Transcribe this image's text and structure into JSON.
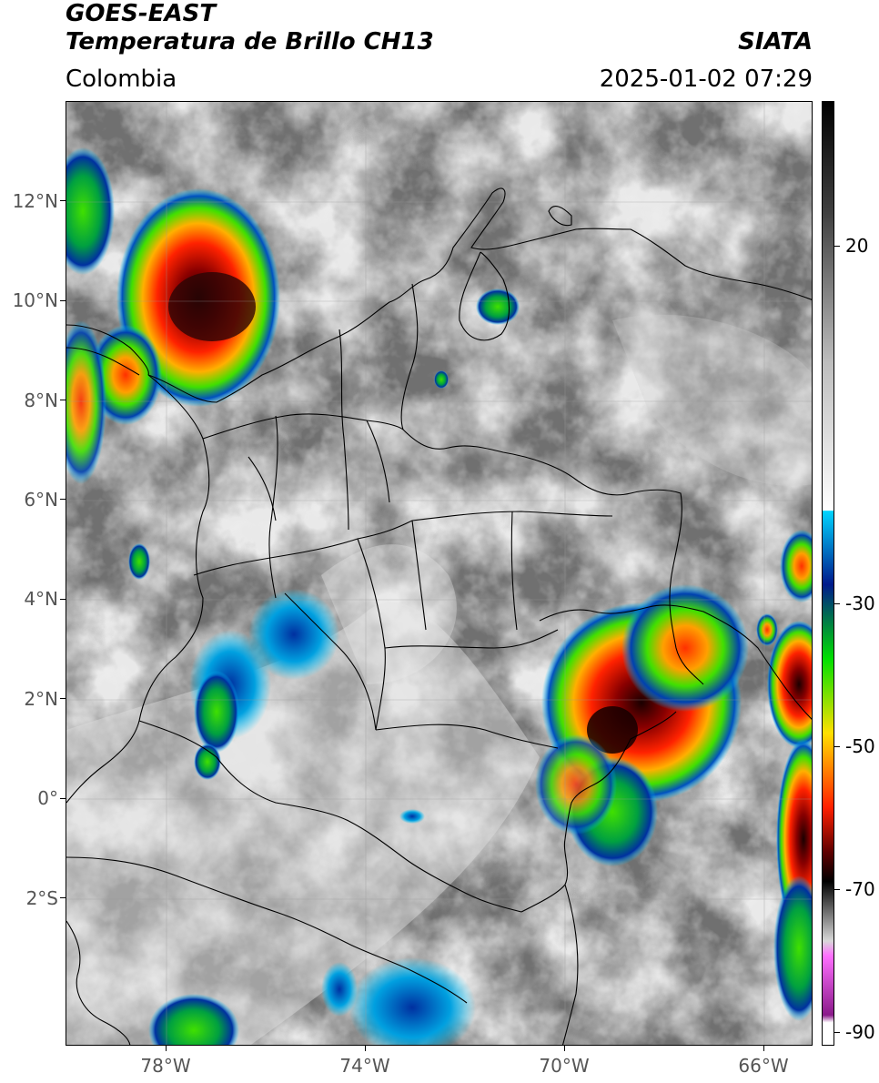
{
  "header": {
    "satellite": "GOES-EAST",
    "product": "Temperatura de Brillo CH13",
    "region": "Colombia",
    "agency": "SIATA",
    "datetime": "2025-01-02 07:29"
  },
  "map": {
    "lat_labels": [
      "12°N",
      "10°N",
      "8°N",
      "6°N",
      "4°N",
      "2°N",
      "0°",
      "2°S"
    ],
    "lon_labels": [
      "78°W",
      "74°W",
      "70°W",
      "66°W"
    ]
  },
  "colorbar": {
    "tick_labels": [
      "20",
      "-30",
      "-50",
      "-70",
      "-90"
    ],
    "stops": [
      {
        "v": 35,
        "c": "#000000"
      },
      {
        "v": 20,
        "c": "#404040"
      },
      {
        "v": 0,
        "c": "#bdbdbd"
      },
      {
        "v": -20,
        "c": "#ffffff"
      },
      {
        "v": -20.1,
        "c": "#00d4ff"
      },
      {
        "v": -30,
        "c": "#001a8c"
      },
      {
        "v": -40,
        "c": "#00e000"
      },
      {
        "v": -50,
        "c": "#ffe000"
      },
      {
        "v": -60,
        "c": "#ff2000"
      },
      {
        "v": -66,
        "c": "#600000"
      },
      {
        "v": -70,
        "c": "#000000"
      },
      {
        "v": -78,
        "c": "#d8d8d8"
      },
      {
        "v": -80,
        "c": "#ff70ff"
      },
      {
        "v": -88,
        "c": "#8a1a8a"
      },
      {
        "v": -89,
        "c": "#ffffff"
      }
    ]
  }
}
